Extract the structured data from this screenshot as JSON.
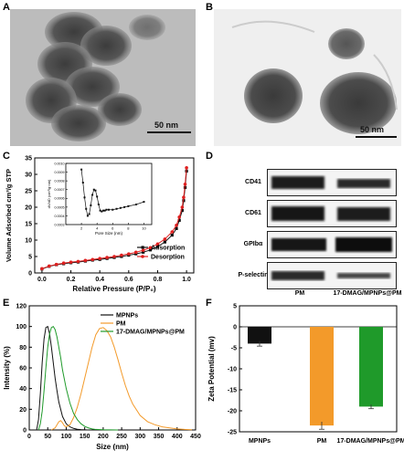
{
  "panels": {
    "A": {
      "label": "A",
      "scalebar": "50 nm"
    },
    "B": {
      "label": "B",
      "scalebar": "50 nm"
    },
    "C": {
      "label": "C"
    },
    "D": {
      "label": "D"
    },
    "E": {
      "label": "E"
    },
    "F": {
      "label": "F"
    }
  },
  "western_blot": {
    "rows": [
      "CD41",
      "CD61",
      "GPIbα",
      "P-selectin"
    ],
    "columns": [
      "PM",
      "17-DMAG/MPNPs@PM"
    ]
  },
  "colors": {
    "black": "#111111",
    "red": "#e02020",
    "orange": "#f39a2a",
    "green": "#1f9a2a"
  },
  "chart_data": [
    {
      "id": "C",
      "type": "line",
      "xlabel": "Relative Pressure (P/P₀)",
      "ylabel": "Volume Adsorbed cm³/g STP",
      "xlim": [
        -0.05,
        1.05
      ],
      "ylim": [
        0,
        35
      ],
      "xticks": [
        "0.0",
        "0.2",
        "0.4",
        "0.6",
        "0.8",
        "1.0"
      ],
      "yticks": [
        "0",
        "5",
        "10",
        "15",
        "20",
        "25",
        "30",
        "35"
      ],
      "legend_position": "right",
      "series": [
        {
          "name": "Adsorption",
          "color": "#111111",
          "marker": "square",
          "x": [
            0,
            0.05,
            0.1,
            0.15,
            0.2,
            0.25,
            0.3,
            0.35,
            0.4,
            0.45,
            0.5,
            0.55,
            0.6,
            0.65,
            0.7,
            0.75,
            0.8,
            0.85,
            0.9,
            0.93,
            0.95,
            0.97,
            0.98,
            0.99,
            1.0
          ],
          "y": [
            1.2,
            2.0,
            2.5,
            2.8,
            3.1,
            3.3,
            3.6,
            3.9,
            4.1,
            4.4,
            4.7,
            5.0,
            5.4,
            5.8,
            6.3,
            7.0,
            8.0,
            9.4,
            11.5,
            13.5,
            16,
            19,
            22,
            26,
            31
          ]
        },
        {
          "name": "Desorption",
          "color": "#e02020",
          "marker": "circle",
          "x": [
            0,
            0.05,
            0.1,
            0.15,
            0.2,
            0.25,
            0.3,
            0.35,
            0.4,
            0.45,
            0.5,
            0.55,
            0.6,
            0.65,
            0.7,
            0.75,
            0.8,
            0.85,
            0.9,
            0.93,
            0.95,
            0.97,
            0.98,
            0.99,
            1.0
          ],
          "y": [
            1.3,
            2.1,
            2.6,
            3.0,
            3.3,
            3.5,
            3.8,
            4.1,
            4.4,
            4.7,
            5.0,
            5.4,
            5.8,
            6.3,
            6.9,
            7.7,
            8.8,
            10.3,
            12.5,
            14.5,
            17,
            20,
            23,
            27,
            32
          ]
        }
      ],
      "inset": {
        "xlabel": "Pore Size (nm)",
        "ylabel": "dV/dD (cm³/g·nm)",
        "xlim": [
          0,
          11
        ],
        "ylim": [
          0.0003,
          0.001
        ],
        "xticks": [
          "2",
          "4",
          "6",
          "8",
          "10"
        ],
        "yticks": [
          "0.0003",
          "0.0004",
          "0.0005",
          "0.0006",
          "0.0007",
          "0.0008",
          "0.0009",
          "0.0010"
        ],
        "x": [
          2,
          2.2,
          2.4,
          2.6,
          2.8,
          3.0,
          3.2,
          3.4,
          3.6,
          3.8,
          4.0,
          4.2,
          4.4,
          4.6,
          4.8,
          5.0,
          5.2,
          5.5,
          6,
          6.5,
          7,
          7.5,
          8,
          9,
          10
        ],
        "y": [
          0.00093,
          0.00078,
          0.00061,
          0.00048,
          0.0004,
          0.00042,
          0.00052,
          0.00064,
          0.0007,
          0.00069,
          0.00062,
          0.00053,
          0.00046,
          0.00045,
          0.00046,
          0.00046,
          0.00047,
          0.00047,
          0.00047,
          0.00048,
          0.00049,
          0.0005,
          0.00051,
          0.00053,
          0.00056
        ]
      }
    },
    {
      "id": "E",
      "type": "line",
      "xlabel": "Size (nm)",
      "ylabel": "Intensity (%)",
      "xlim": [
        0,
        450
      ],
      "ylim": [
        0,
        120
      ],
      "xticks": [
        "0",
        "50",
        "100",
        "150",
        "200",
        "250",
        "300",
        "350",
        "400",
        "450"
      ],
      "yticks": [
        "0",
        "20",
        "40",
        "60",
        "80",
        "100",
        "120"
      ],
      "legend_position": "top-center",
      "series": [
        {
          "name": "MPNPs",
          "color": "#111111",
          "x": [
            20,
            25,
            30,
            35,
            40,
            45,
            50,
            55,
            60,
            65,
            70,
            75,
            80,
            90,
            100,
            110,
            120,
            130,
            140,
            160
          ],
          "y": [
            0,
            10,
            35,
            65,
            88,
            99,
            100,
            93,
            80,
            65,
            50,
            38,
            27,
            13,
            6,
            3,
            1.5,
            0.7,
            0.3,
            0
          ]
        },
        {
          "name": "PM",
          "color": "#f39a2a",
          "x": [
            60,
            70,
            75,
            80,
            85,
            90,
            95,
            100,
            110,
            120,
            130,
            140,
            150,
            160,
            170,
            180,
            190,
            200,
            210,
            220,
            230,
            240,
            250,
            260,
            270,
            280,
            300,
            320,
            340,
            360,
            380,
            400,
            420,
            440
          ],
          "y": [
            0,
            2,
            5,
            8,
            9,
            7,
            4,
            3,
            5,
            12,
            22,
            35,
            50,
            65,
            80,
            92,
            98,
            99,
            96,
            90,
            80,
            68,
            55,
            43,
            33,
            25,
            14,
            8,
            5,
            3,
            2,
            1,
            0.5,
            0.2
          ]
        },
        {
          "name": "17-DMAG/MPNPs@PM",
          "color": "#1f9a2a",
          "x": [
            25,
            30,
            35,
            40,
            45,
            50,
            55,
            60,
            65,
            70,
            75,
            80,
            85,
            90,
            100,
            110,
            120,
            130,
            140,
            150,
            160,
            170,
            180,
            200,
            220,
            240
          ],
          "y": [
            0,
            6,
            18,
            38,
            60,
            80,
            93,
            99,
            100,
            97,
            90,
            80,
            70,
            58,
            40,
            26,
            16,
            10,
            6,
            3.5,
            2,
            1,
            0.5,
            0.2,
            0.1,
            0
          ]
        }
      ]
    },
    {
      "id": "F",
      "type": "bar",
      "categories": [
        "MPNPs",
        "PM",
        "17-DMAG/MPNPs@PM"
      ],
      "values": [
        -4.0,
        -23.5,
        -19.0
      ],
      "errors": [
        0.6,
        0.9,
        0.5
      ],
      "colors": [
        "#111111",
        "#f39a2a",
        "#1f9a2a"
      ],
      "ylabel": "Zeta Potential (mv)",
      "ylim": [
        -25,
        5
      ],
      "yticks": [
        "-25",
        "-20",
        "-15",
        "-10",
        "-5",
        "0",
        "5"
      ]
    }
  ]
}
